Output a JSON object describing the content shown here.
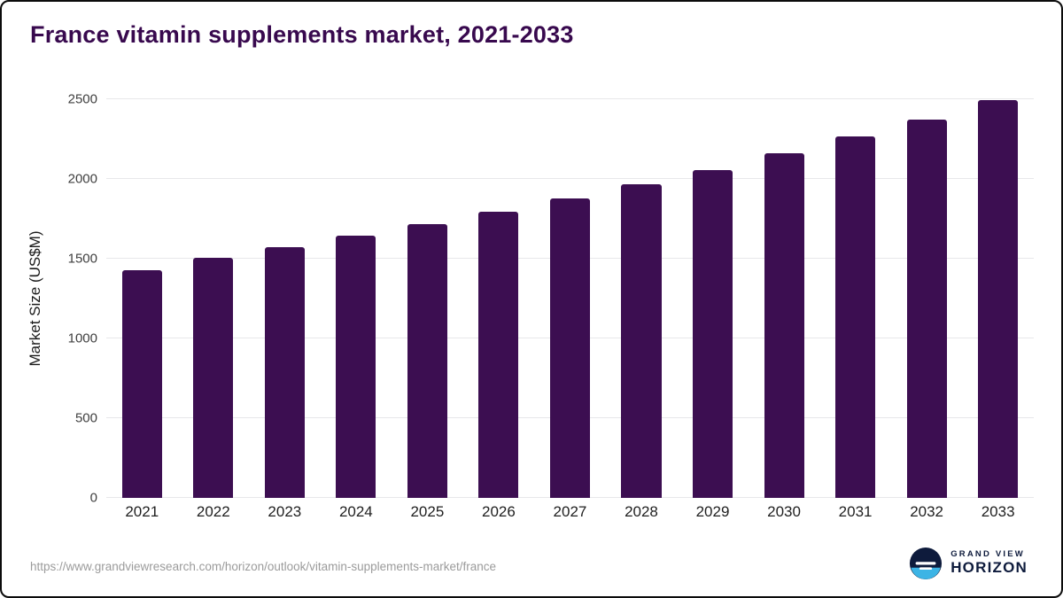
{
  "page": {
    "title": "France vitamin supplements market, 2021-2033",
    "source_url": "https://www.grandviewresearch.com/horizon/outlook/vitamin-supplements-market/france",
    "brand": {
      "line1": "GRAND VIEW",
      "line2": "HORIZON"
    }
  },
  "colors": {
    "title": "#38094e",
    "bar": "#3c0e51",
    "grid": "#e7e7ea",
    "footer_text": "#9b9b9b",
    "logo_navy": "#0e1b3c",
    "logo_blue": "#3cb4e5"
  },
  "chart_data": {
    "type": "bar",
    "title": "France vitamin supplements market, 2021-2033",
    "categories": [
      "2021",
      "2022",
      "2023",
      "2024",
      "2025",
      "2026",
      "2027",
      "2028",
      "2029",
      "2030",
      "2031",
      "2032",
      "2033"
    ],
    "values": [
      1430,
      1505,
      1570,
      1645,
      1715,
      1795,
      1880,
      1965,
      2055,
      2160,
      2265,
      2375,
      2495
    ],
    "xlabel": "",
    "ylabel": "Market Size (US$M)",
    "ylim": [
      0,
      2500
    ],
    "yticks": [
      0,
      500,
      1000,
      1500,
      2000,
      2500
    ],
    "grid": true,
    "legend": false,
    "bar_color": "#3c0e51"
  }
}
